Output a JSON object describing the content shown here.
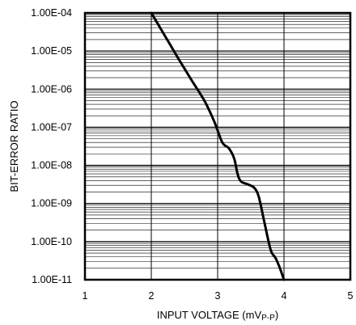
{
  "chart_data": {
    "type": "line",
    "xlabel_main": "INPUT VOLTAGE (mV",
    "xlabel_sub": "P-P",
    "xlabel_close": ")",
    "ylabel": "BIT-ERROR RATIO",
    "xlim": [
      1,
      5
    ],
    "ylim": [
      1e-11,
      0.0001
    ],
    "yscale": "log",
    "grid": true,
    "xticks": [
      1,
      2,
      3,
      4,
      5
    ],
    "xtick_labels": [
      "1",
      "2",
      "3",
      "4",
      "5"
    ],
    "yticks": [
      0.0001,
      1e-05,
      1e-06,
      1e-07,
      1e-08,
      1e-09,
      1e-10,
      1e-11
    ],
    "ytick_labels": [
      "1.00E-04",
      "1.00E-05",
      "1.00E-06",
      "1.00E-07",
      "1.00E-08",
      "1.00E-09",
      "1.00E-10",
      "1.00E-11"
    ],
    "series": [
      {
        "color": "#000000",
        "x": [
          2.0,
          2.2,
          2.4,
          2.6,
          2.8,
          2.95,
          3.07,
          3.17,
          3.25,
          3.3,
          3.35,
          3.45,
          3.55,
          3.62,
          3.7,
          3.8,
          3.87,
          3.93,
          4.0
        ],
        "y": [
          0.0001,
          2.6e-05,
          6.7e-06,
          1.8e-06,
          5e-07,
          1.4e-07,
          4e-08,
          2.8e-08,
          1.5e-08,
          6e-09,
          3.8e-09,
          3.2e-09,
          2.6e-09,
          1.5e-09,
          3.5e-10,
          6e-11,
          3.8e-11,
          2.2e-11,
          1e-11
        ]
      }
    ]
  }
}
